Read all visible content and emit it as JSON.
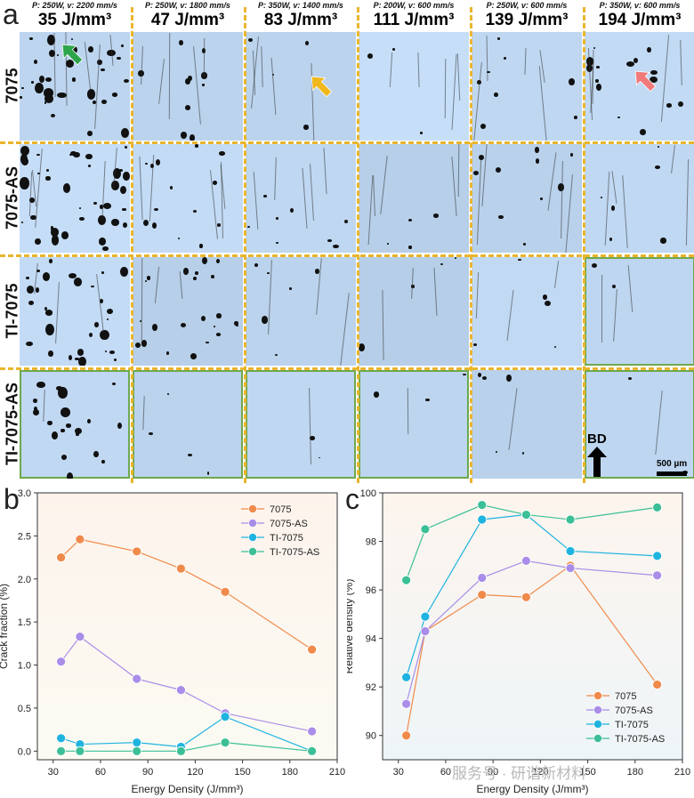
{
  "panel_a": {
    "letter": "a",
    "columns": [
      {
        "params": "P: 250W,  v: 2200 mm/s",
        "energy": "35 J/mm³"
      },
      {
        "params": "P: 250W,  v: 1800 mm/s",
        "energy": "47 J/mm³"
      },
      {
        "params": "P: 350W,  v: 1400 mm/s",
        "energy": "83 J/mm³"
      },
      {
        "params": "P: 200W,  v: 600 mm/s",
        "energy": "111 J/mm³"
      },
      {
        "params": "P: 250W,  v: 600 mm/s",
        "energy": "139 J/mm³"
      },
      {
        "params": "P: 350W,  v: 600 mm/s",
        "energy": "194 J/mm³"
      }
    ],
    "rows": [
      "7075",
      "7075-AS",
      "TI-7075",
      "TI-7075-AS"
    ],
    "build_direction_label": "BD",
    "scale_bar_label": "500 µm",
    "grid_color": "#e9b52c",
    "highlight_color": "#6ea84e"
  },
  "chart_data": [
    {
      "panel": "b",
      "type": "line",
      "xlabel": "Energy Density (J/mm³)",
      "ylabel": "Crack fraction (%)",
      "xlim": [
        20,
        210
      ],
      "ylim": [
        -0.1,
        3.0
      ],
      "xticks": [
        30,
        60,
        90,
        120,
        150,
        180,
        210
      ],
      "yticks": [
        0.0,
        0.5,
        1.0,
        1.5,
        2.0,
        2.5,
        3.0
      ],
      "legend_position": "top-right",
      "series": [
        {
          "name": "7075",
          "color": "#f08a4b",
          "x": [
            35,
            47,
            83,
            111,
            139,
            194
          ],
          "y": [
            2.25,
            2.46,
            2.32,
            2.12,
            1.85,
            1.18
          ]
        },
        {
          "name": "7075-AS",
          "color": "#a98de8",
          "x": [
            35,
            47,
            83,
            111,
            139,
            194
          ],
          "y": [
            1.04,
            1.33,
            0.84,
            0.71,
            0.44,
            0.23
          ]
        },
        {
          "name": "TI-7075",
          "color": "#1fb3e0",
          "x": [
            35,
            47,
            83,
            111,
            139,
            194
          ],
          "y": [
            0.15,
            0.08,
            0.1,
            0.05,
            0.4,
            0.0
          ]
        },
        {
          "name": "TI-7075-AS",
          "color": "#3cbf97",
          "x": [
            35,
            47,
            83,
            111,
            139,
            194
          ],
          "y": [
            0.0,
            0.0,
            0.0,
            0.0,
            0.1,
            0.0
          ]
        }
      ]
    },
    {
      "panel": "c",
      "type": "line",
      "xlabel": "Energy Density (J/mm³)",
      "ylabel": "Relative density (%)",
      "xlim": [
        20,
        210
      ],
      "ylim": [
        89,
        100
      ],
      "xticks": [
        30,
        60,
        90,
        120,
        150,
        180,
        210
      ],
      "yticks": [
        90,
        92,
        94,
        96,
        98,
        100
      ],
      "legend_position": "bottom-right",
      "series": [
        {
          "name": "7075",
          "color": "#f08a4b",
          "x": [
            35,
            47,
            83,
            111,
            139,
            194
          ],
          "y": [
            90.0,
            94.3,
            95.8,
            95.7,
            97.0,
            92.1
          ]
        },
        {
          "name": "7075-AS",
          "color": "#a98de8",
          "x": [
            35,
            47,
            83,
            111,
            139,
            194
          ],
          "y": [
            91.3,
            94.3,
            96.5,
            97.2,
            96.9,
            96.6
          ]
        },
        {
          "name": "TI-7075",
          "color": "#1fb3e0",
          "x": [
            35,
            47,
            83,
            111,
            139,
            194
          ],
          "y": [
            92.4,
            94.9,
            98.9,
            99.1,
            97.6,
            97.4
          ]
        },
        {
          "name": "TI-7075-AS",
          "color": "#3cbf97",
          "x": [
            35,
            47,
            83,
            111,
            139,
            194
          ],
          "y": [
            96.4,
            98.5,
            99.5,
            99.1,
            98.9,
            99.4
          ]
        }
      ]
    }
  ],
  "watermark": "服务号 · 研谐新材料"
}
